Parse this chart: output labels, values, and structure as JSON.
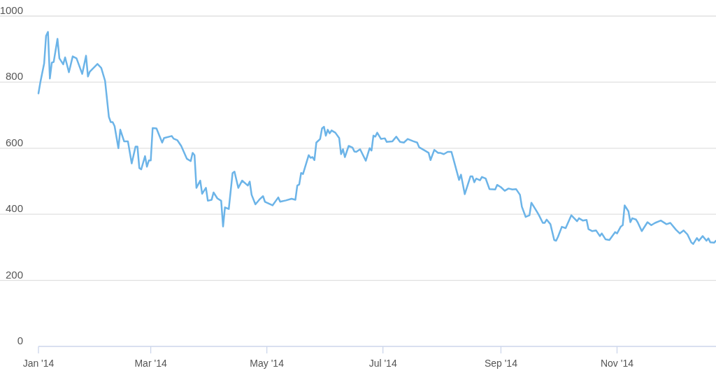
{
  "chart_data": {
    "type": "line",
    "x": [
      "2014-01-01",
      "2014-01-02",
      "2014-01-04",
      "2014-01-05",
      "2014-01-06",
      "2014-01-07",
      "2014-01-08",
      "2014-01-09",
      "2014-01-11",
      "2014-01-12",
      "2014-01-14",
      "2014-01-15",
      "2014-01-17",
      "2014-01-19",
      "2014-01-21",
      "2014-01-24",
      "2014-01-26",
      "2014-01-27",
      "2014-01-28",
      "2014-02-01",
      "2014-02-03",
      "2014-02-05",
      "2014-02-07",
      "2014-02-08",
      "2014-02-09",
      "2014-02-10",
      "2014-02-12",
      "2014-02-13",
      "2014-02-15",
      "2014-02-17",
      "2014-02-19",
      "2014-02-21",
      "2014-02-22",
      "2014-02-23",
      "2014-02-24",
      "2014-02-26",
      "2014-02-27",
      "2014-02-28",
      "2014-03-01",
      "2014-03-02",
      "2014-03-04",
      "2014-03-07",
      "2014-03-08",
      "2014-03-12",
      "2014-03-13",
      "2014-03-15",
      "2014-03-17",
      "2014-03-20",
      "2014-03-22",
      "2014-03-23",
      "2014-03-24",
      "2014-03-25",
      "2014-03-27",
      "2014-03-28",
      "2014-03-30",
      "2014-03-31",
      "2014-04-02",
      "2014-04-03",
      "2014-04-05",
      "2014-04-07",
      "2014-04-08",
      "2014-04-09",
      "2014-04-11",
      "2014-04-13",
      "2014-04-14",
      "2014-04-16",
      "2014-04-18",
      "2014-04-21",
      "2014-04-22",
      "2014-04-23",
      "2014-04-25",
      "2014-04-27",
      "2014-04-29",
      "2014-04-30",
      "2014-05-04",
      "2014-05-07",
      "2014-05-08",
      "2014-05-11",
      "2014-05-14",
      "2014-05-16",
      "2014-05-17",
      "2014-05-18",
      "2014-05-19",
      "2014-05-20",
      "2014-05-23",
      "2014-05-24",
      "2014-05-25",
      "2014-05-26",
      "2014-05-27",
      "2014-05-29",
      "2014-05-30",
      "2014-05-31",
      "2014-06-01",
      "2014-06-02",
      "2014-06-03",
      "2014-06-04",
      "2014-06-06",
      "2014-06-08",
      "2014-06-09",
      "2014-06-10",
      "2014-06-11",
      "2014-06-12",
      "2014-06-13",
      "2014-06-15",
      "2014-06-16",
      "2014-06-17",
      "2014-06-19",
      "2014-06-22",
      "2014-06-24",
      "2014-06-25",
      "2014-06-26",
      "2014-06-27",
      "2014-06-28",
      "2014-06-30",
      "2014-07-02",
      "2014-07-03",
      "2014-07-06",
      "2014-07-08",
      "2014-07-10",
      "2014-07-12",
      "2014-07-14",
      "2014-07-17",
      "2014-07-19",
      "2014-07-20",
      "2014-07-23",
      "2014-07-25",
      "2014-07-26",
      "2014-07-28",
      "2014-07-30",
      "2014-07-31",
      "2014-08-02",
      "2014-08-04",
      "2014-08-06",
      "2014-08-07",
      "2014-08-10",
      "2014-08-11",
      "2014-08-13",
      "2014-08-16",
      "2014-08-17",
      "2014-08-18",
      "2014-08-19",
      "2014-08-21",
      "2014-08-22",
      "2014-08-24",
      "2014-08-26",
      "2014-08-29",
      "2014-08-30",
      "2014-09-01",
      "2014-09-03",
      "2014-09-05",
      "2014-09-07",
      "2014-09-09",
      "2014-09-11",
      "2014-09-12",
      "2014-09-14",
      "2014-09-16",
      "2014-09-17",
      "2014-09-20",
      "2014-09-21",
      "2014-09-23",
      "2014-09-24",
      "2014-09-25",
      "2014-09-27",
      "2014-09-29",
      "2014-09-30",
      "2014-10-01",
      "2014-10-03",
      "2014-10-05",
      "2014-10-08",
      "2014-10-11",
      "2014-10-12",
      "2014-10-14",
      "2014-10-16",
      "2014-10-17",
      "2014-10-19",
      "2014-10-21",
      "2014-10-23",
      "2014-10-24",
      "2014-10-26",
      "2014-10-28",
      "2014-10-31",
      "2014-11-01",
      "2014-11-03",
      "2014-11-04",
      "2014-11-05",
      "2014-11-07",
      "2014-11-08",
      "2014-11-09",
      "2014-11-11",
      "2014-11-12",
      "2014-11-14",
      "2014-11-16",
      "2014-11-17",
      "2014-11-19",
      "2014-11-21",
      "2014-11-24",
      "2014-11-27",
      "2014-11-29",
      "2014-12-02",
      "2014-12-04",
      "2014-12-06",
      "2014-12-08",
      "2014-12-10",
      "2014-12-11",
      "2014-12-13",
      "2014-12-14",
      "2014-12-16",
      "2014-12-18",
      "2014-12-19",
      "2014-12-20",
      "2014-12-22",
      "2014-12-23"
    ],
    "series": [
      {
        "color": "#6cb4e8",
        "values": [
          766,
          800,
          857,
          940,
          952,
          811,
          859,
          861,
          931,
          872,
          854,
          875,
          830,
          878,
          872,
          825,
          880,
          817,
          832,
          855,
          843,
          804,
          695,
          679,
          679,
          667,
          600,
          656,
          621,
          621,
          554,
          605,
          605,
          540,
          536,
          576,
          544,
          563,
          563,
          661,
          660,
          617,
          631,
          637,
          629,
          624,
          607,
          568,
          561,
          586,
          579,
          480,
          502,
          462,
          480,
          441,
          444,
          466,
          448,
          441,
          363,
          421,
          416,
          525,
          529,
          480,
          502,
          487,
          499,
          459,
          430,
          444,
          455,
          438,
          427,
          451,
          438,
          442,
          447,
          444,
          487,
          490,
          525,
          522,
          579,
          571,
          573,
          564,
          617,
          628,
          660,
          665,
          638,
          656,
          645,
          654,
          647,
          631,
          582,
          597,
          573,
          590,
          607,
          602,
          590,
          589,
          597,
          562,
          600,
          593,
          638,
          635,
          647,
          628,
          630,
          619,
          621,
          635,
          619,
          617,
          628,
          621,
          617,
          603,
          593,
          586,
          564,
          595,
          586,
          586,
          582,
          589,
          589,
          568,
          504,
          520,
          461,
          515,
          515,
          497,
          508,
          503,
          513,
          508,
          476,
          475,
          489,
          482,
          471,
          478,
          475,
          476,
          459,
          423,
          392,
          397,
          435,
          407,
          397,
          374,
          374,
          384,
          370,
          322,
          320,
          332,
          362,
          358,
          397,
          379,
          388,
          381,
          383,
          355,
          349,
          351,
          334,
          342,
          324,
          322,
          346,
          342,
          363,
          367,
          427,
          409,
          376,
          388,
          384,
          374,
          349,
          367,
          376,
          367,
          374,
          381,
          370,
          374,
          353,
          342,
          351,
          339,
          315,
          310,
          328,
          320,
          334,
          320,
          327,
          315,
          314,
          320
        ]
      }
    ],
    "xlim": [
      "2014-01-01",
      "2014-12-23"
    ],
    "xticks": [
      {
        "value": "2014-01-01",
        "label": "Jan '14"
      },
      {
        "value": "2014-03-01",
        "label": "Mar '14"
      },
      {
        "value": "2014-05-01",
        "label": "May '14"
      },
      {
        "value": "2014-07-01",
        "label": "Jul '14"
      },
      {
        "value": "2014-09-01",
        "label": "Sep '14"
      },
      {
        "value": "2014-11-01",
        "label": "Nov '14"
      }
    ],
    "ylim": [
      0,
      1000
    ],
    "yticks": [
      0,
      200,
      400,
      600,
      800,
      1000
    ],
    "grid": "y",
    "marker": "none",
    "line_style": "solid"
  }
}
